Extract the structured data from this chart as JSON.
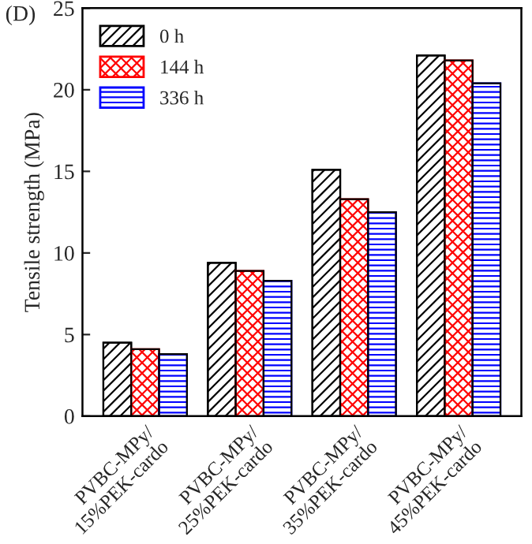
{
  "chart_data": {
    "type": "bar",
    "title": "(D)",
    "ylabel": "Tensile strength (MPa)",
    "categories": [
      "PVBC-MPy/\n15%PEK-cardo",
      "PVBC-MPy/\n25%PEK-cardo",
      "PVBC-MPy/\n35%PEK-cardo",
      "PVBC-MPy/\n45%PEK-cardo"
    ],
    "series": [
      {
        "name": "0 h",
        "color": "#000000",
        "values": [
          4.5,
          9.4,
          15.1,
          22.1
        ]
      },
      {
        "name": "144 h",
        "color": "#ff0000",
        "values": [
          4.1,
          8.9,
          13.3,
          21.8
        ]
      },
      {
        "name": "336 h",
        "color": "#0000ff",
        "values": [
          3.8,
          8.3,
          12.5,
          20.4
        ]
      }
    ],
    "ylim": [
      0,
      25
    ],
    "yticks": [
      0,
      5,
      10,
      15,
      20,
      25
    ],
    "grid": false,
    "legend": "top left"
  }
}
